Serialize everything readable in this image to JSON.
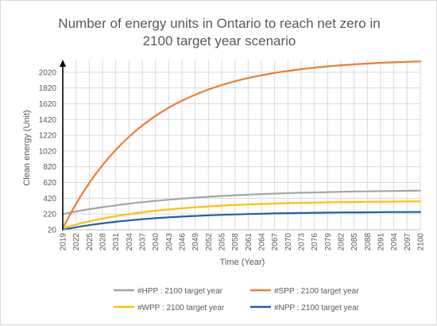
{
  "chart_data": {
    "type": "line",
    "title_line1": "Number of energy units in Ontario to reach net zero in",
    "title_line2": "2100 target year scenario",
    "xlabel": "Time (Year)",
    "ylabel": "Clean energy (Unit)",
    "x": [
      2019,
      2022,
      2025,
      2028,
      2031,
      2034,
      2037,
      2040,
      2043,
      2046,
      2049,
      2052,
      2055,
      2058,
      2061,
      2064,
      2067,
      2070,
      2073,
      2076,
      2079,
      2082,
      2085,
      2088,
      2091,
      2094,
      2097,
      2100
    ],
    "x_tick_labels": [
      "2019",
      "2022",
      "2025",
      "2028",
      "2031",
      "2034",
      "2037",
      "2040",
      "2043",
      "2046",
      "2049",
      "2052",
      "2055",
      "2058",
      "2061",
      "2064",
      "2067",
      "2070",
      "2073",
      "2076",
      "2079",
      "2082",
      "2085",
      "2088",
      "2091",
      "2094",
      "2097",
      "2100"
    ],
    "y_ticks": [
      20,
      220,
      420,
      620,
      820,
      1020,
      1220,
      1420,
      1620,
      1820,
      2020
    ],
    "y_tick_labels": [
      "20",
      "220",
      "420",
      "620",
      "820",
      "1020",
      "1220",
      "1420",
      "1620",
      "1820",
      "2020"
    ],
    "ylim": [
      20,
      2180
    ],
    "xlim": [
      2019,
      2100
    ],
    "grid": true,
    "legend_position": "bottom",
    "series": [
      {
        "name": "#HPP  : 2100 target year",
        "color": "#a5a5a5",
        "values": [
          220,
          252,
          281,
          307,
          330,
          351,
          370,
          387,
          402,
          416,
          428,
          439,
          449,
          458,
          466,
          473,
          479,
          485,
          490,
          494,
          498,
          502,
          505,
          508,
          511,
          513,
          515,
          517
        ]
      },
      {
        "name": "#SPP  : 2100 target year",
        "color": "#ed7d31",
        "values": [
          40,
          349,
          614,
          840,
          1034,
          1201,
          1343,
          1465,
          1570,
          1659,
          1735,
          1801,
          1857,
          1905,
          1946,
          1981,
          2011,
          2037,
          2059,
          2078,
          2094,
          2108,
          2120,
          2130,
          2139,
          2146,
          2152,
          2157
        ]
      },
      {
        "name": "#WPP  : 2100 target year",
        "color": "#ffc000",
        "values": [
          40,
          87,
          127,
          162,
          193,
          219,
          242,
          261,
          278,
          293,
          306,
          317,
          327,
          335,
          342,
          348,
          353,
          358,
          362,
          365,
          368,
          371,
          373,
          375,
          377,
          378,
          379,
          380
        ]
      },
      {
        "name": "#NPP : 2100 target year",
        "color": "#1f5fa8",
        "values": [
          20,
          52,
          79,
          102,
          122,
          139,
          154,
          167,
          178,
          188,
          196,
          203,
          210,
          215,
          220,
          224,
          228,
          231,
          233,
          236,
          238,
          240,
          241,
          242,
          244,
          245,
          245,
          246
        ]
      }
    ]
  }
}
